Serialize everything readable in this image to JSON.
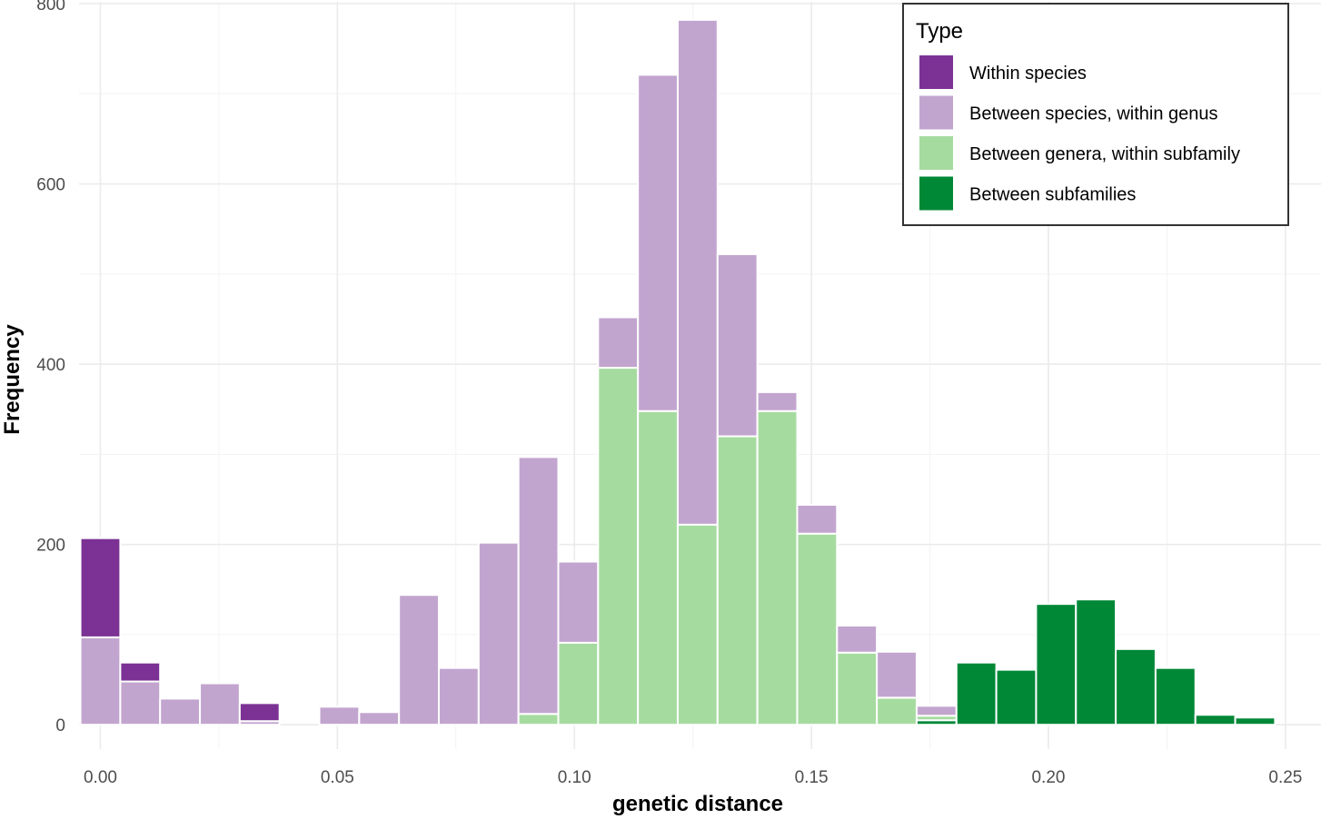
{
  "chart_data": {
    "type": "bar",
    "stacked": true,
    "xlabel": "genetic distance",
    "ylabel": "Frequency",
    "xlim": [
      -0.0045,
      0.2575
    ],
    "ylim": [
      -27,
      802
    ],
    "x_ticks": [
      0.0,
      0.05,
      0.1,
      0.15,
      0.2,
      0.25
    ],
    "x_tick_labels": [
      "0.00",
      "0.05",
      "0.10",
      "0.15",
      "0.20",
      "0.25"
    ],
    "y_ticks": [
      0,
      200,
      400,
      600,
      800
    ],
    "y_tick_labels": [
      "0",
      "200",
      "400",
      "600",
      "800"
    ],
    "grid": true,
    "bin_width": 0.0084,
    "x": [
      0.0,
      0.0084,
      0.0168,
      0.0252,
      0.0336,
      0.042,
      0.0504,
      0.0588,
      0.0672,
      0.0756,
      0.084,
      0.0924,
      0.1008,
      0.1092,
      0.1176,
      0.126,
      0.1344,
      0.1428,
      0.1512,
      0.1596,
      0.168,
      0.1764,
      0.1848,
      0.1932,
      0.2016,
      0.21,
      0.2184,
      0.2268,
      0.2352,
      0.2436
    ],
    "series": [
      {
        "name": "Between subfamilies",
        "color": "#008837",
        "values": [
          0,
          0,
          0,
          0,
          0,
          0,
          0,
          0,
          0,
          0,
          0,
          0,
          0,
          0,
          0,
          0,
          0,
          0,
          0,
          0,
          0,
          5,
          69,
          61,
          134,
          139,
          84,
          63,
          11,
          8
        ]
      },
      {
        "name": "Between genera, within subfamily",
        "color": "#a6dba0",
        "values": [
          0,
          0,
          0,
          0,
          0,
          0,
          0,
          0,
          0,
          0,
          0,
          12,
          91,
          396,
          348,
          222,
          320,
          348,
          212,
          80,
          30,
          5,
          0,
          0,
          0,
          0,
          0,
          0,
          0,
          0
        ]
      },
      {
        "name": "Between species, within genus",
        "color": "#c2a5cf",
        "values": [
          97,
          48,
          29,
          46,
          4,
          0,
          20,
          14,
          144,
          63,
          202,
          285,
          90,
          56,
          373,
          560,
          202,
          21,
          32,
          30,
          51,
          11,
          0,
          0,
          0,
          0,
          0,
          0,
          0,
          0
        ]
      },
      {
        "name": "Within species",
        "color": "#7b3294",
        "values": [
          110,
          21,
          0,
          0,
          20,
          0,
          0,
          0,
          0,
          0,
          0,
          0,
          0,
          0,
          0,
          0,
          0,
          0,
          0,
          0,
          0,
          0,
          0,
          0,
          0,
          0,
          0,
          0,
          0,
          0
        ]
      }
    ],
    "legend": {
      "title": "Type",
      "position": "top-right",
      "order": [
        "Within species",
        "Between species, within genus",
        "Between genera, within subfamily",
        "Between subfamilies"
      ]
    }
  }
}
